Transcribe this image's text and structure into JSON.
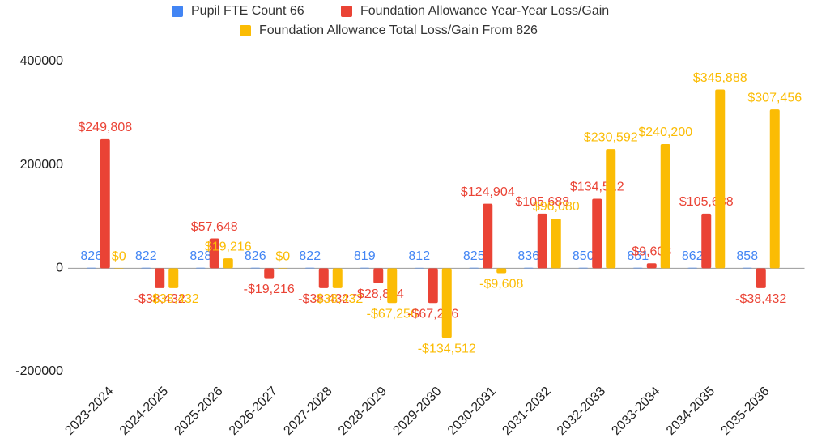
{
  "chart_data": {
    "type": "bar",
    "categories": [
      "2023-2024",
      "2024-2025",
      "2025-2026",
      "2026-2027",
      "2027-2028",
      "2028-2029",
      "2029-2030",
      "2030-2031",
      "2031-2032",
      "2032-2033",
      "2033-2034",
      "2034-2035",
      "2035-2036"
    ],
    "series": [
      {
        "name": "Pupil FTE Count 66",
        "color": "#4285f4",
        "values": [
          826,
          822,
          828,
          826,
          822,
          819,
          812,
          825,
          836,
          850,
          851,
          862,
          858
        ]
      },
      {
        "name": "Foundation Allowance Year-Year Loss/Gain",
        "color": "#ea4335",
        "values": [
          249808,
          -38432,
          57648,
          -19216,
          -38432,
          -28824,
          -67256,
          124904,
          105688,
          134512,
          9608,
          105688,
          -38432
        ],
        "value_labels": [
          "$249,808",
          "-$38,432",
          "$57,648",
          "-$19,216",
          "-$38,432",
          "-$28,824",
          "-$67,256",
          "$124,904",
          "$105,688",
          "$134,512",
          "$9,608",
          "$105,688",
          "-$38,432"
        ]
      },
      {
        "name": "Foundation Allowance Total Loss/Gain From 826",
        "color": "#fbbc04",
        "values": [
          0,
          -38432,
          19216,
          0,
          -38432,
          -67256,
          -134512,
          -9608,
          96080,
          230592,
          240200,
          345888,
          307456
        ],
        "value_labels": [
          "$0",
          "-$38,432",
          "$19,216",
          "$0",
          "-$38,432",
          "-$67,256",
          "-$134,512",
          "-$9,608",
          "$96,080",
          "$230,592",
          "$240,200",
          "$345,888",
          "$307,456"
        ]
      }
    ],
    "ylim": [
      -200000,
      400000
    ],
    "yticks": [
      -200000,
      0,
      200000,
      400000
    ],
    "grid": false
  }
}
